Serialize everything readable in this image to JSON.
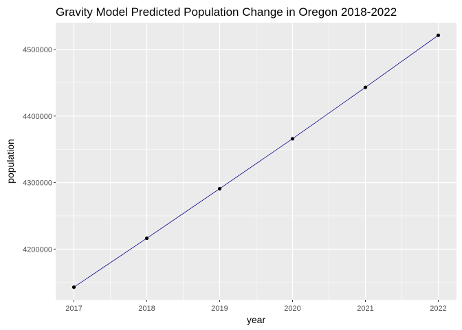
{
  "chart_data": {
    "type": "line",
    "title": "Gravity Model Predicted Population Change in Oregon 2018-2022",
    "xlabel": "year",
    "ylabel": "population",
    "x": [
      2017,
      2018,
      2019,
      2020,
      2021,
      2022
    ],
    "series": [
      {
        "values": [
          4142800,
          4216300,
          4290800,
          4365900,
          4443100,
          4521400
        ],
        "line_color": "#00008b",
        "point_color": "#000000"
      }
    ],
    "x_ticks": [
      "2017",
      "2018",
      "2019",
      "2020",
      "2021",
      "2022"
    ],
    "y_ticks": [
      4200000,
      4300000,
      4400000,
      4500000
    ],
    "y_tick_labels": [
      "4200000",
      "4300000",
      "4400000",
      "4500000"
    ],
    "xlim": [
      2016.75,
      2022.25
    ],
    "ylim": [
      4123900,
      4540300
    ],
    "grid": true,
    "panel_background": "#ebebeb",
    "grid_color": "#ffffff"
  }
}
